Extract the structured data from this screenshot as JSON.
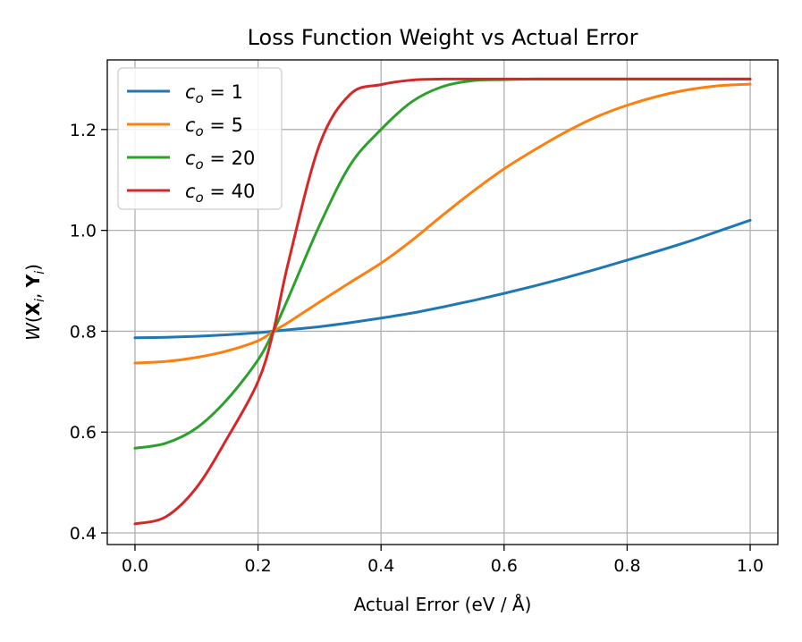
{
  "chart_data": {
    "type": "line",
    "title": "Loss Function Weight vs Actual Error",
    "xlabel": "Actual Error (eV / Å)",
    "ylabel": "W(Xᵢ, Yᵢ)",
    "xlim": [
      -0.045,
      1.045
    ],
    "ylim": [
      0.377,
      1.338
    ],
    "xticks": [
      0.0,
      0.2,
      0.4,
      0.6,
      0.8,
      1.0
    ],
    "xtick_labels": [
      "0.0",
      "0.2",
      "0.4",
      "0.6",
      "0.8",
      "1.0"
    ],
    "yticks": [
      0.4,
      0.6,
      0.8,
      1.0,
      1.2
    ],
    "ytick_labels": [
      "0.4",
      "0.6",
      "0.8",
      "1.0",
      "1.2"
    ],
    "grid": true,
    "legend_position": "upper-left",
    "x": [
      0.0,
      0.05,
      0.1,
      0.15,
      0.2,
      0.225,
      0.25,
      0.3,
      0.35,
      0.4,
      0.45,
      0.5,
      0.55,
      0.6,
      0.65,
      0.7,
      0.75,
      0.8,
      0.85,
      0.9,
      0.95,
      1.0
    ],
    "series": [
      {
        "name": "c_o = 1",
        "label_main": "c",
        "label_sub": "o",
        "label_rest": " = 1",
        "color": "#1f77b4",
        "values": [
          0.787,
          0.788,
          0.79,
          0.793,
          0.797,
          0.8,
          0.803,
          0.809,
          0.817,
          0.826,
          0.836,
          0.848,
          0.861,
          0.875,
          0.89,
          0.906,
          0.923,
          0.941,
          0.959,
          0.978,
          0.999,
          1.02
        ]
      },
      {
        "name": "c_o = 5",
        "label_main": "c",
        "label_sub": "o",
        "label_rest": " = 5",
        "color": "#ff7f0e",
        "values": [
          0.737,
          0.74,
          0.748,
          0.761,
          0.781,
          0.8,
          0.818,
          0.858,
          0.897,
          0.935,
          0.98,
          1.03,
          1.078,
          1.122,
          1.16,
          1.195,
          1.225,
          1.248,
          1.266,
          1.279,
          1.287,
          1.29
        ]
      },
      {
        "name": "c_o = 20",
        "label_main": "c",
        "label_sub": "o",
        "label_rest": " = 20",
        "color": "#2ca02c",
        "values": [
          0.568,
          0.578,
          0.608,
          0.665,
          0.743,
          0.8,
          0.868,
          1.01,
          1.13,
          1.2,
          1.255,
          1.285,
          1.297,
          1.299,
          1.3,
          1.3,
          1.3,
          1.3,
          1.3,
          1.3,
          1.3,
          1.3
        ]
      },
      {
        "name": "c_o = 40",
        "label_main": "c",
        "label_sub": "o",
        "label_rest": " = 40",
        "color": "#d62728",
        "values": [
          0.418,
          0.432,
          0.49,
          0.588,
          0.7,
          0.8,
          0.94,
          1.17,
          1.27,
          1.289,
          1.298,
          1.3,
          1.3,
          1.3,
          1.3,
          1.3,
          1.3,
          1.3,
          1.3,
          1.3,
          1.3,
          1.3
        ]
      }
    ]
  }
}
